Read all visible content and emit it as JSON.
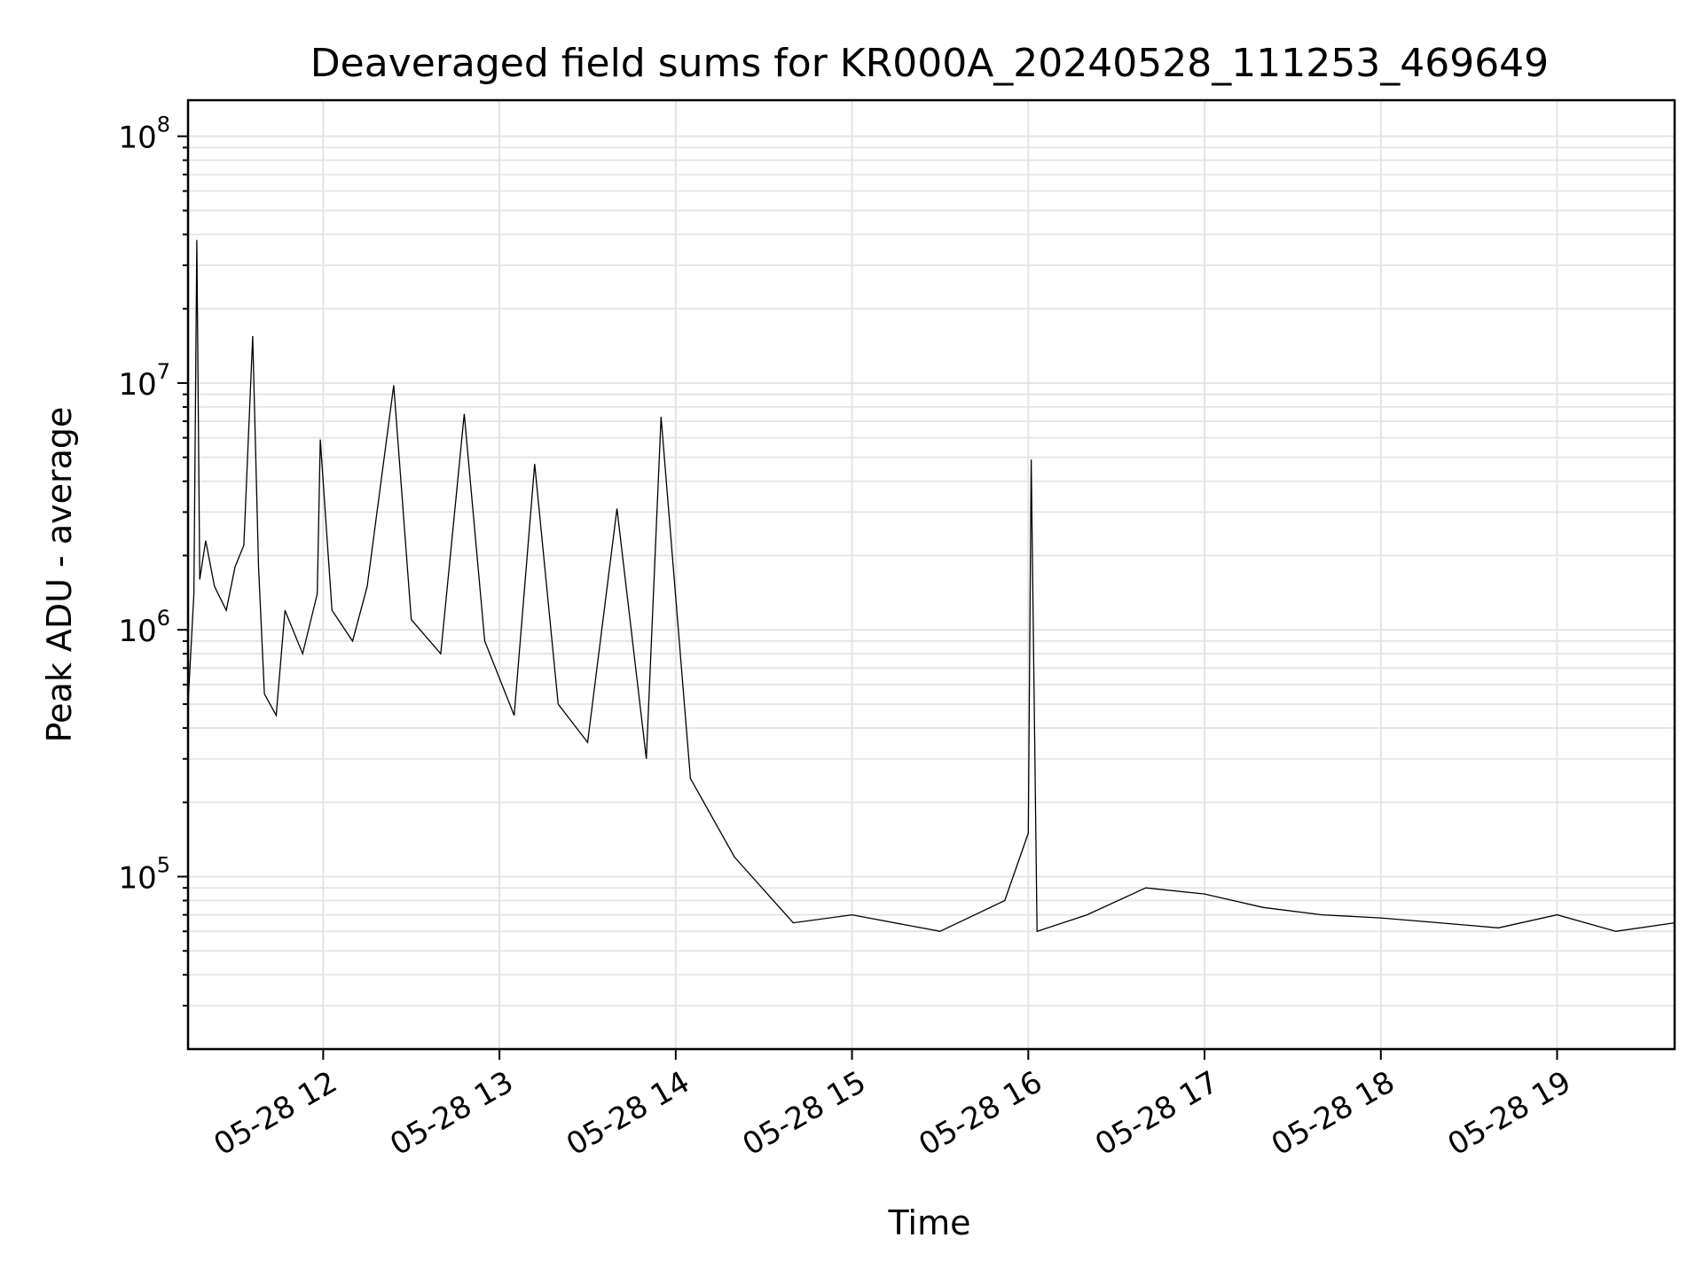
{
  "chart_data": {
    "type": "line",
    "title": "Deaveraged field sums for KR000A_20240528_111253_469649",
    "xlabel": "Time",
    "ylabel": "Peak ADU - average",
    "yscale": "log",
    "grid": true,
    "xlim": [
      "2024-05-28 11:14",
      "2024-05-28 19:40"
    ],
    "ylim": [
      20000,
      140000000
    ],
    "x_ticks": [
      {
        "value": "2024-05-28 12:00",
        "label": "05-28 12"
      },
      {
        "value": "2024-05-28 13:00",
        "label": "05-28 13"
      },
      {
        "value": "2024-05-28 14:00",
        "label": "05-28 14"
      },
      {
        "value": "2024-05-28 15:00",
        "label": "05-28 15"
      },
      {
        "value": "2024-05-28 16:00",
        "label": "05-28 16"
      },
      {
        "value": "2024-05-28 17:00",
        "label": "05-28 17"
      },
      {
        "value": "2024-05-28 18:00",
        "label": "05-28 18"
      },
      {
        "value": "2024-05-28 19:00",
        "label": "05-28 19"
      }
    ],
    "y_ticks": [
      {
        "value": 100000,
        "base": "10",
        "exp": "5"
      },
      {
        "value": 1000000,
        "base": "10",
        "exp": "6"
      },
      {
        "value": 10000000,
        "base": "10",
        "exp": "7"
      },
      {
        "value": 100000000,
        "base": "10",
        "exp": "8"
      }
    ],
    "series": [
      {
        "color": "#000000",
        "points": [
          [
            "2024-05-28 11:14",
            500000
          ],
          [
            "2024-05-28 11:16",
            1400000
          ],
          [
            "2024-05-28 11:17",
            38000000
          ],
          [
            "2024-05-28 11:18",
            1600000
          ],
          [
            "2024-05-28 11:20",
            2300000
          ],
          [
            "2024-05-28 11:23",
            1500000
          ],
          [
            "2024-05-28 11:27",
            1200000
          ],
          [
            "2024-05-28 11:30",
            1800000
          ],
          [
            "2024-05-28 11:33",
            2200000
          ],
          [
            "2024-05-28 11:36",
            15500000
          ],
          [
            "2024-05-28 11:38",
            1800000
          ],
          [
            "2024-05-28 11:40",
            550000
          ],
          [
            "2024-05-28 11:44",
            450000
          ],
          [
            "2024-05-28 11:47",
            1200000
          ],
          [
            "2024-05-28 11:53",
            800000
          ],
          [
            "2024-05-28 11:58",
            1400000
          ],
          [
            "2024-05-28 11:59",
            5900000
          ],
          [
            "2024-05-28 12:03",
            1200000
          ],
          [
            "2024-05-28 12:10",
            900000
          ],
          [
            "2024-05-28 12:15",
            1500000
          ],
          [
            "2024-05-28 12:24",
            9800000
          ],
          [
            "2024-05-28 12:30",
            1100000
          ],
          [
            "2024-05-28 12:40",
            800000
          ],
          [
            "2024-05-28 12:48",
            7500000
          ],
          [
            "2024-05-28 12:55",
            900000
          ],
          [
            "2024-05-28 13:05",
            450000
          ],
          [
            "2024-05-28 13:12",
            4700000
          ],
          [
            "2024-05-28 13:20",
            500000
          ],
          [
            "2024-05-28 13:30",
            350000
          ],
          [
            "2024-05-28 13:40",
            3100000
          ],
          [
            "2024-05-28 13:50",
            300000
          ],
          [
            "2024-05-28 13:55",
            7300000
          ],
          [
            "2024-05-28 14:05",
            250000
          ],
          [
            "2024-05-28 14:20",
            120000
          ],
          [
            "2024-05-28 14:40",
            65000
          ],
          [
            "2024-05-28 15:00",
            70000
          ],
          [
            "2024-05-28 15:30",
            60000
          ],
          [
            "2024-05-28 15:52",
            80000
          ],
          [
            "2024-05-28 16:00",
            150000
          ],
          [
            "2024-05-28 16:01",
            4900000
          ],
          [
            "2024-05-28 16:03",
            60000
          ],
          [
            "2024-05-28 16:20",
            70000
          ],
          [
            "2024-05-28 16:40",
            90000
          ],
          [
            "2024-05-28 17:00",
            85000
          ],
          [
            "2024-05-28 17:20",
            75000
          ],
          [
            "2024-05-28 17:40",
            70000
          ],
          [
            "2024-05-28 18:00",
            68000
          ],
          [
            "2024-05-28 18:20",
            65000
          ],
          [
            "2024-05-28 18:40",
            62000
          ],
          [
            "2024-05-28 19:00",
            70000
          ],
          [
            "2024-05-28 19:20",
            60000
          ],
          [
            "2024-05-28 19:40",
            65000
          ]
        ]
      }
    ]
  }
}
